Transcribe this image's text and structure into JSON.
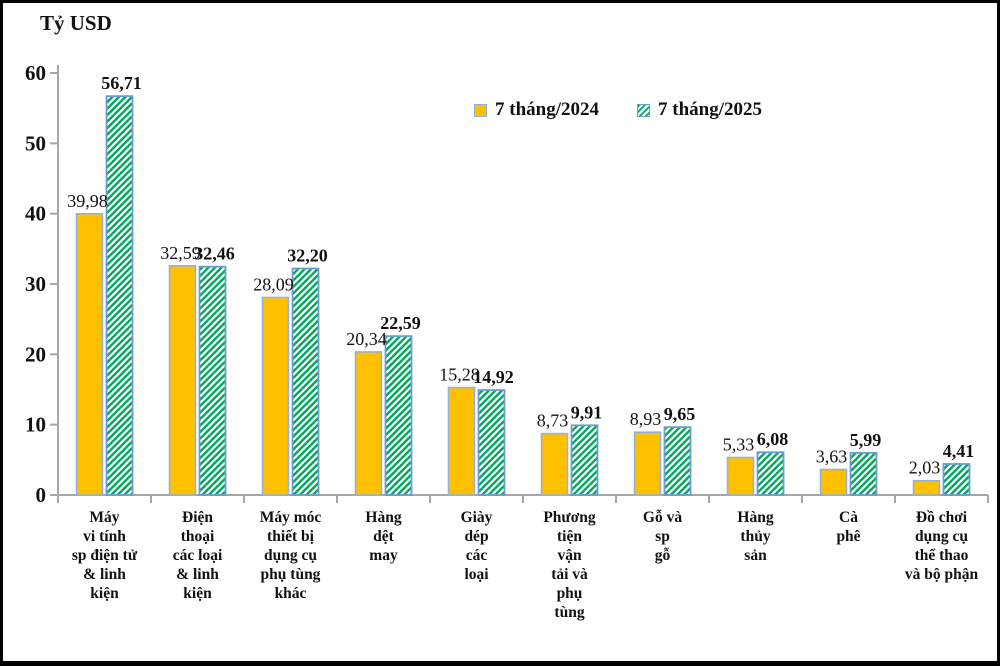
{
  "title": "Tỷ USD",
  "legend": {
    "s2024": "7 tháng/2024",
    "s2025": "7 tháng/2025"
  },
  "colors": {
    "bar_2024_fill": "#FFC000",
    "bar_2024_border": "#95B3D7",
    "bar_2025_hatch": "#00A85C",
    "bar_2025_border": "#6D9CCF",
    "axis": "#A6A6A6",
    "text": "#111111"
  },
  "chart_data": {
    "type": "bar",
    "title": "Tỷ USD",
    "xlabel": "",
    "ylabel": "Tỷ USD",
    "ylim": [
      0,
      60
    ],
    "yticks": [
      0,
      10,
      20,
      30,
      40,
      50,
      60
    ],
    "grid": false,
    "legend_position": "top-center",
    "decimal_separator": ",",
    "categories": [
      "Máy\nvi tính\nsp điện tử\n& linh\nkiện",
      "Điện\nthoại\ncác loại\n& linh\nkiện",
      "Máy móc\nthiết bị\ndụng cụ\nphụ tùng\nkhác",
      "Hàng\ndệt\nmay",
      "Giày\ndép\ncác\nloại",
      "Phương\ntiện\nvận\ntải và\nphụ\ntùng",
      "Gỗ và\nsp\ngỗ",
      "Hàng\nthủy\nsản",
      "Cà\nphê",
      "Đồ chơi\ndụng cụ\nthể thao\nvà bộ phận"
    ],
    "series": [
      {
        "name": "7 tháng/2024",
        "style": "solid",
        "values": [
          39.98,
          32.59,
          28.09,
          20.34,
          15.28,
          8.73,
          8.93,
          5.33,
          3.63,
          2.03
        ],
        "labels": [
          "39,98",
          "32,59",
          "28,09",
          "20,34",
          "15,28",
          "8,73",
          "8,93",
          "5,33",
          "3,63",
          "2,03"
        ]
      },
      {
        "name": "7 tháng/2025",
        "style": "diagonal-hatch",
        "values": [
          56.71,
          32.46,
          32.2,
          22.59,
          14.92,
          9.91,
          9.65,
          6.08,
          5.99,
          4.41
        ],
        "labels": [
          "56,71",
          "32,46",
          "32,20",
          "22,59",
          "14,92",
          "9,91",
          "9,65",
          "6,08",
          "5,99",
          "4,41"
        ]
      }
    ]
  }
}
